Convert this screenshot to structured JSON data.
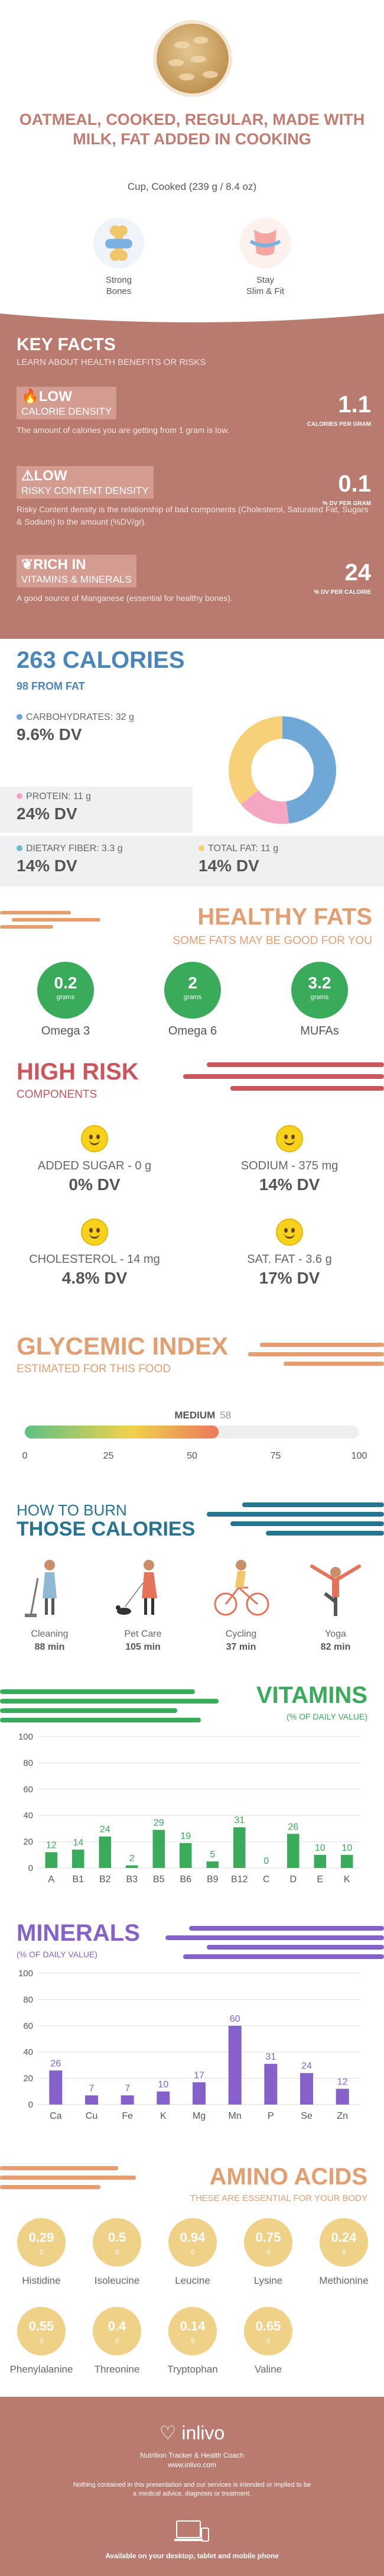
{
  "hero": {
    "title": "OATMEAL, COOKED, REGULAR, MADE WITH MILK, FAT ADDED IN COOKING",
    "serving": "Cup, Cooked (239 g / 8.4 oz)",
    "badges": [
      {
        "label_line1": "Strong",
        "label_line2": "Bones",
        "icon": "bone-icon"
      },
      {
        "label_line1": "Stay",
        "label_line2": "Slim & Fit",
        "icon": "tape-measure-icon"
      }
    ]
  },
  "key_facts": {
    "title": "KEY FACTS",
    "subtitle": "LEARN ABOUT HEALTH BENEFITS OR RISKS",
    "items": [
      {
        "icon": "flame-icon",
        "level": "LOW",
        "name": "CALORIE DENSITY",
        "value": "1.1",
        "unit": "CALORIES PER GRAM",
        "description": "The amount of calories you are getting from 1 gram is low."
      },
      {
        "icon": "warning-icon",
        "level": "LOW",
        "name": "RISKY CONTENT DENSITY",
        "value": "0.1",
        "unit": "% DV PER GRAM",
        "description": "Risky Content density is the relationship of bad components (Cholesterol, Saturated Fat, Sugars & Sodium) to the amount (%DV/gr)."
      },
      {
        "icon": "leaf-icon",
        "level": "RICH IN",
        "name": "VITAMINS & MINERALS",
        "value": "24",
        "unit": "% DV PER CALORIE",
        "description": "A good source of Manganese (essential for healthy bones)."
      }
    ]
  },
  "calories": {
    "title": "263 CALORIES",
    "from_fat": "98 FROM FAT",
    "carbs": {
      "label": "CARBOHYDRATES: 32 g",
      "dv": "9.6% DV",
      "color": "#6fa8d6"
    },
    "protein": {
      "label": "PROTEIN: 11 g",
      "dv": "24% DV",
      "color": "#f4a6c2"
    },
    "fiber": {
      "label": "DIETARY FIBER: 3.3 g",
      "dv": "14% DV",
      "color": "#6bbcc7"
    },
    "fat": {
      "label": "TOTAL FAT: 11 g",
      "dv": "14% DV",
      "color": "#f7d07a"
    }
  },
  "healthy_fats": {
    "title": "HEALTHY FATS",
    "subtitle": "SOME FATS MAY BE GOOD FOR YOU",
    "unit": "grams",
    "items": [
      {
        "value": "0.2",
        "name": "Omega 3"
      },
      {
        "value": "2",
        "name": "Omega 6"
      },
      {
        "value": "3.2",
        "name": "MUFAs"
      }
    ]
  },
  "high_risk": {
    "title": "HIGH RISK",
    "subtitle": "COMPONENTS",
    "items": [
      {
        "label": "ADDED SUGAR - 0 g",
        "dv": "0% DV",
        "icon": "smile-icon"
      },
      {
        "label": "SODIUM - 375 mg",
        "dv": "14% DV",
        "icon": "smile-icon"
      },
      {
        "label": "CHOLESTEROL - 14 mg",
        "dv": "4.8% DV",
        "icon": "smile-icon"
      },
      {
        "label": "SAT. FAT - 3.6 g",
        "dv": "17% DV",
        "icon": "smile-icon"
      }
    ]
  },
  "glycemic": {
    "title": "GLYCEMIC INDEX",
    "subtitle": "ESTIMATED FOR THIS FOOD",
    "level": "MEDIUM",
    "value": 58,
    "ticks": [
      "0",
      "25",
      "50",
      "75",
      "100"
    ]
  },
  "burn": {
    "title_line1": "HOW TO BURN",
    "title_line2": "THOSE CALORIES",
    "activities": [
      {
        "name": "Cleaning",
        "minutes": "88 min",
        "icon": "cleaning-icon"
      },
      {
        "name": "Pet Care",
        "minutes": "105 min",
        "icon": "pet-care-icon"
      },
      {
        "name": "Cycling",
        "minutes": "37 min",
        "icon": "cycling-icon"
      },
      {
        "name": "Yoga",
        "minutes": "82 min",
        "icon": "yoga-icon"
      }
    ]
  },
  "chart_data": [
    {
      "type": "donut",
      "title": "",
      "categories": [
        "Carbohydrates",
        "Protein",
        "Total Fat"
      ],
      "values": [
        48,
        16,
        36
      ],
      "colors": [
        "#6fa8d6",
        "#f4a6c2",
        "#f7d07a"
      ]
    },
    {
      "type": "bar",
      "title": "VITAMINS",
      "subtitle": "(% OF DAILY VALUE)",
      "categories": [
        "A",
        "B1",
        "B2",
        "B3",
        "B5",
        "B6",
        "B9",
        "B12",
        "C",
        "D",
        "E",
        "K"
      ],
      "values": [
        12,
        14,
        24,
        2,
        29,
        19,
        5,
        31,
        0,
        26,
        10,
        10
      ],
      "ylim": [
        0,
        100
      ],
      "yticks": [
        0,
        20,
        40,
        60,
        80,
        100
      ],
      "color": "#3aaa5b"
    },
    {
      "type": "bar",
      "title": "MINERALS",
      "subtitle": "(% OF DAILY VALUE)",
      "categories": [
        "Ca",
        "Cu",
        "Fe",
        "K",
        "Mg",
        "Mn",
        "P",
        "Se",
        "Zn"
      ],
      "values": [
        26,
        7,
        7,
        10,
        17,
        60,
        31,
        24,
        12
      ],
      "ylim": [
        0,
        100
      ],
      "yticks": [
        0,
        20,
        40,
        60,
        80,
        100
      ],
      "color": "#8562c9"
    }
  ],
  "amino": {
    "title": "AMINO ACIDS",
    "subtitle": "THESE ARE ESSENTIAL FOR YOUR BODY",
    "unit": "g",
    "items": [
      {
        "value": "0.29",
        "name": "Histidine"
      },
      {
        "value": "0.5",
        "name": "Isoleucine"
      },
      {
        "value": "0.94",
        "name": "Leucine"
      },
      {
        "value": "0.75",
        "name": "Lysine"
      },
      {
        "value": "0.24",
        "name": "Methionine"
      },
      {
        "value": "0.55",
        "name": "Phenylalanine"
      },
      {
        "value": "0.4",
        "name": "Threonine"
      },
      {
        "value": "0.14",
        "name": "Tryptophan"
      },
      {
        "value": "0.65",
        "name": "Valine"
      }
    ]
  },
  "footer": {
    "logo": "inlivo",
    "tagline": "Nutrition Tracker & Health Coach",
    "url": "www.inlivo.com",
    "disclaimer": "Nothing contained in this presentation and our services is intended or implied to be a medical advice, diagnosis or treatment.",
    "available": "Available on your desktop, tablet and mobile phone"
  }
}
